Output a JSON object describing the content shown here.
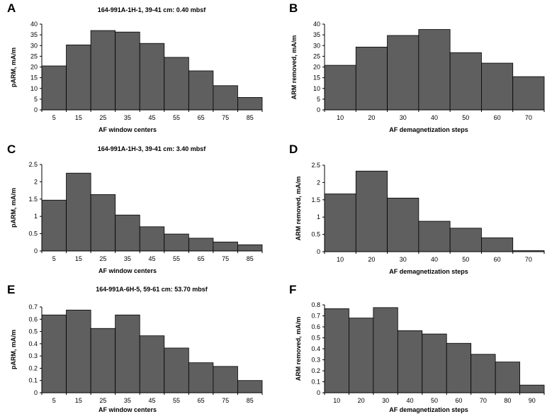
{
  "chart_data": [
    {
      "type": "bar",
      "panel": "A",
      "title": "164-991A-1H-1, 39-41 cm: 0.40 mbsf",
      "xlabel": "AF window centers",
      "ylabel": "pARM, mA/m",
      "categories": [
        "5",
        "15",
        "25",
        "35",
        "45",
        "55",
        "65",
        "75",
        "85"
      ],
      "values": [
        20.5,
        30.3,
        37,
        36.3,
        31,
        24.5,
        18.2,
        11.3,
        5.8
      ],
      "ylim": [
        0,
        40
      ],
      "yticks": [
        "0",
        "5",
        "10",
        "15",
        "20",
        "25",
        "30",
        "35",
        "40"
      ]
    },
    {
      "type": "bar",
      "panel": "B",
      "title": "",
      "xlabel": "AF demagnetization steps",
      "ylabel": "ARM removed, mA/m",
      "categories": [
        "10",
        "20",
        "30",
        "40",
        "50",
        "60",
        "70"
      ],
      "values": [
        20.8,
        29.3,
        34.7,
        37.5,
        26.7,
        21.8,
        15.5
      ],
      "ylim": [
        0,
        40
      ],
      "yticks": [
        "0",
        "5",
        "10",
        "15",
        "20",
        "25",
        "30",
        "35",
        "40"
      ]
    },
    {
      "type": "bar",
      "panel": "C",
      "title": "164-991A-1H-3, 39-41 cm: 3.40 mbsf",
      "xlabel": "AF window centers",
      "ylabel": "pARM, mA/m",
      "categories": [
        "5",
        "15",
        "25",
        "35",
        "45",
        "55",
        "65",
        "75",
        "85"
      ],
      "values": [
        1.47,
        2.25,
        1.63,
        1.04,
        0.7,
        0.49,
        0.37,
        0.26,
        0.18
      ],
      "ylim": [
        0,
        2.5
      ],
      "yticks": [
        "0",
        "0.5",
        "1",
        "1.5",
        "2",
        "2.5"
      ]
    },
    {
      "type": "bar",
      "panel": "D",
      "title": "",
      "xlabel": "AF demagnetization steps",
      "ylabel": "ARM removed, mA/m",
      "categories": [
        "10",
        "20",
        "30",
        "40",
        "50",
        "60",
        "70"
      ],
      "values": [
        1.67,
        2.33,
        1.55,
        0.88,
        0.68,
        0.4,
        0.03
      ],
      "ylim": [
        0,
        2.5
      ],
      "yticks": [
        "0",
        "0.5",
        "1",
        "1.5",
        "2",
        "2.5"
      ]
    },
    {
      "type": "bar",
      "panel": "E",
      "title": "164-991A-6H-5, 59-61 cm: 53.70 mbsf",
      "xlabel": "AF window centers",
      "ylabel": "pARM, mA/m",
      "categories": [
        "5",
        "15",
        "25",
        "35",
        "45",
        "55",
        "65",
        "75",
        "85"
      ],
      "values": [
        0.635,
        0.675,
        0.525,
        0.635,
        0.465,
        0.365,
        0.245,
        0.215,
        0.1
      ],
      "ylim": [
        0,
        0.7
      ],
      "yticks": [
        "0",
        "0.1",
        "0.2",
        "0.3",
        "0.4",
        "0.5",
        "0.6",
        "0.7"
      ]
    },
    {
      "type": "bar",
      "panel": "F",
      "title": "",
      "xlabel": "AF demagnetization steps",
      "ylabel": "ARM removed, mA/m",
      "categories": [
        "10",
        "20",
        "30",
        "40",
        "50",
        "60",
        "70",
        "80",
        "90"
      ],
      "values": [
        0.765,
        0.68,
        0.775,
        0.565,
        0.535,
        0.45,
        0.35,
        0.28,
        0.07
      ],
      "ylim": [
        0,
        0.8
      ],
      "yticks": [
        "0",
        "0.1",
        "0.2",
        "0.3",
        "0.4",
        "0.5",
        "0.6",
        "0.7",
        "0.8"
      ]
    }
  ]
}
